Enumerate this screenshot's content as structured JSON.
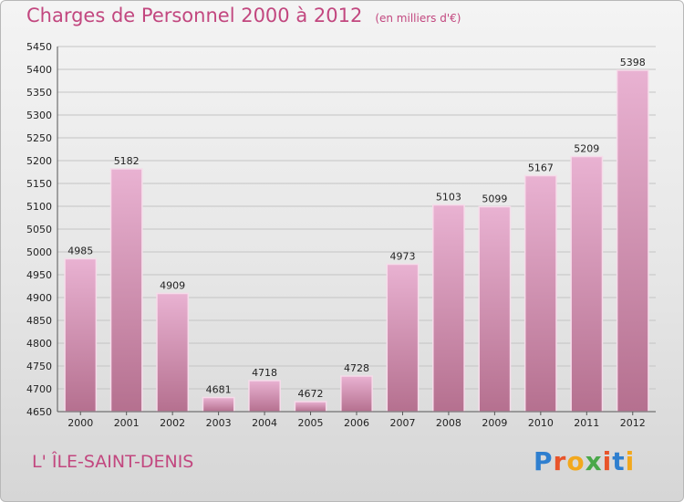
{
  "header": {
    "title": "Charges de Personnel 2000 à 2012",
    "subtitle": "(en milliers d'€)"
  },
  "footer": {
    "commune": "L' ÎLE-SAINT-DENIS",
    "logo_text": "Proxiti",
    "logo_colors": [
      "#2f7fcf",
      "#e8542a",
      "#f2a81d",
      "#4aa84a",
      "#e8542a",
      "#2f7fcf",
      "#f2a81d"
    ]
  },
  "colors": {
    "bar_light": "#e9b2d2",
    "bar_dark": "#b5708f",
    "bar_stroke": "#f6dcea",
    "title": "#c2477f",
    "grid": "#c4c4c4"
  },
  "chart_data": {
    "type": "bar",
    "categories": [
      "2000",
      "2001",
      "2002",
      "2003",
      "2004",
      "2005",
      "2006",
      "2007",
      "2008",
      "2009",
      "2010",
      "2011",
      "2012"
    ],
    "values": [
      4985,
      5182,
      4909,
      4681,
      4718,
      4672,
      4728,
      4973,
      5103,
      5099,
      5167,
      5209,
      5398
    ],
    "data_labels": [
      "4985",
      "5182",
      "4909",
      "4681",
      "4718",
      "4672",
      "4728",
      "4973",
      "5103",
      "5099",
      "5167",
      "5209",
      "5398"
    ],
    "title": "Charges de Personnel 2000 à 2012",
    "xlabel": "",
    "ylabel": "",
    "ylim": [
      4650,
      5450
    ],
    "y_ticks": [
      4650,
      4700,
      4750,
      4800,
      4850,
      4900,
      4950,
      5000,
      5050,
      5100,
      5150,
      5200,
      5250,
      5300,
      5350,
      5400,
      5450
    ],
    "grid": true,
    "legend": "none"
  }
}
